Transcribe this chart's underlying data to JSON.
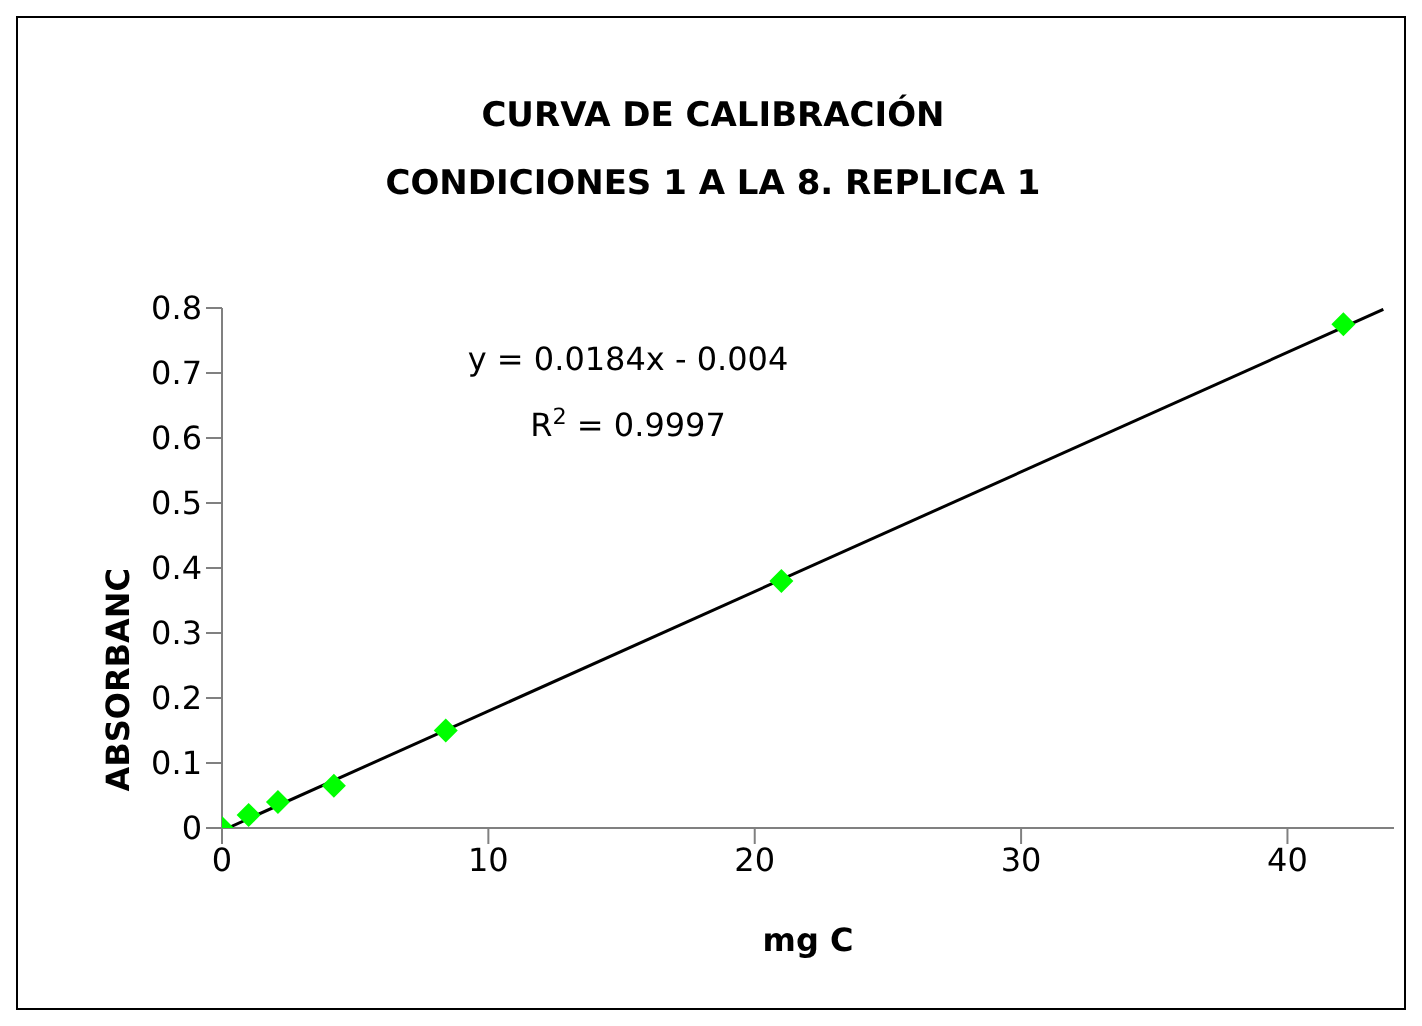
{
  "chart_data": {
    "type": "scatter",
    "title": [
      "CURVA DE CALIBRACIÓN",
      "CONDICIONES 1 A LA 8. REPLICA 1"
    ],
    "xlabel": "mg C",
    "ylabel": "ABSORBANC",
    "annotations": [
      "y = 0.0184x - 0.004",
      "R$^{2}$ = 0.9997"
    ],
    "series": [
      {
        "color": "#00ff00",
        "x": [
          0,
          1.0,
          2.1,
          4.2,
          8.4,
          21.0,
          42.1
        ],
        "values": [
          0,
          0.02,
          0.04,
          0.065,
          0.15,
          0.38,
          0.775
        ],
        "marker": "diamond"
      },
      {
        "type": "line",
        "color": "#000000",
        "x": [
          0.22,
          43.6
        ],
        "values": [
          0,
          0.798
        ],
        "marker": "none"
      }
    ],
    "xlim": [
      0,
      44
    ],
    "xticks": [
      0,
      10,
      20,
      30,
      40
    ],
    "ylim": [
      0,
      0.8
    ],
    "yticks": [
      0,
      0.1,
      0.2,
      0.3,
      0.4,
      0.5,
      0.6,
      0.7,
      0.8
    ],
    "grid": false,
    "legend": false
  }
}
